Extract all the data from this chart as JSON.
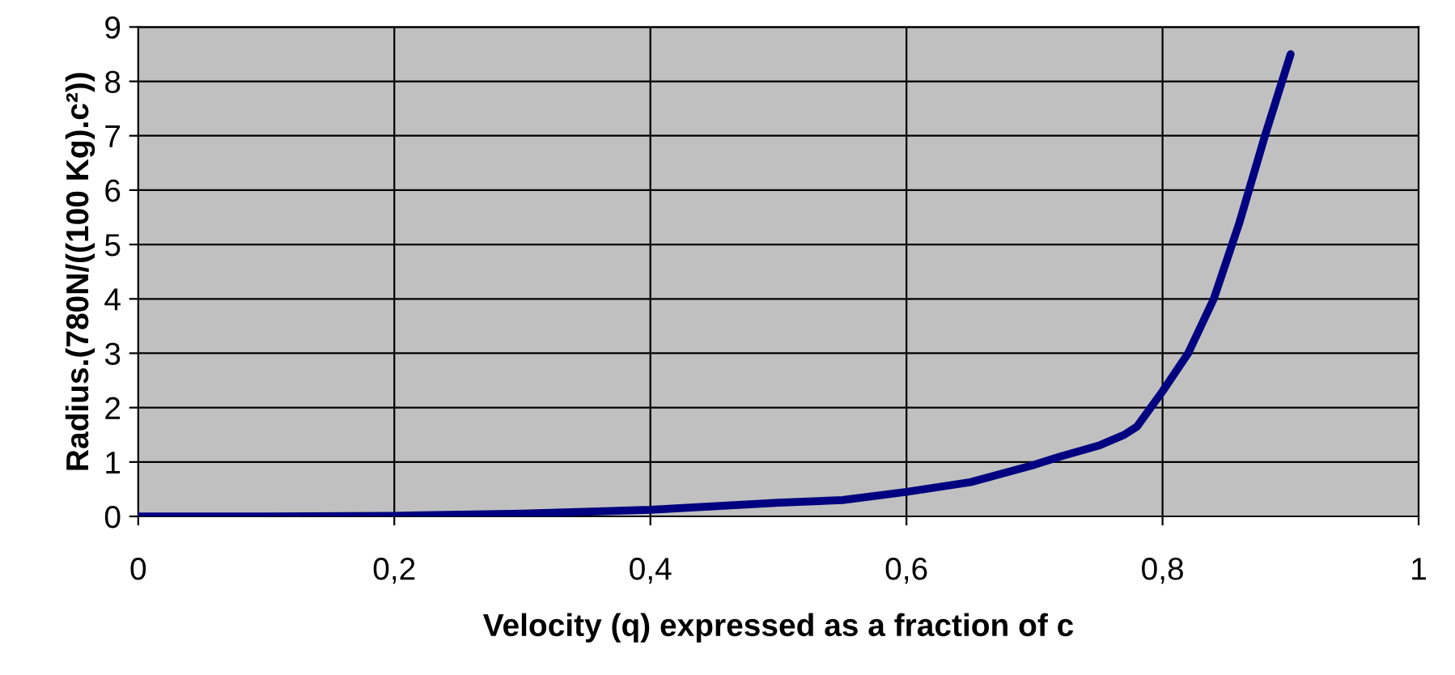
{
  "chart_data": {
    "type": "line",
    "xlabel": "Velocity (q) expressed as a fraction of c",
    "ylabel": "Radius.(780N/((100 Kg).c²))",
    "series": [
      {
        "color": "#000080",
        "x": [
          0,
          0.1,
          0.2,
          0.3,
          0.4,
          0.5,
          0.55,
          0.6,
          0.65,
          0.7,
          0.72,
          0.75,
          0.77,
          0.78,
          0.8,
          0.82,
          0.84,
          0.86,
          0.88,
          0.9
        ],
        "values": [
          0,
          0,
          0.01,
          0.05,
          0.12,
          0.25,
          0.3,
          0.45,
          0.63,
          0.95,
          1.1,
          1.3,
          1.5,
          1.65,
          2.3,
          3.0,
          4.0,
          5.4,
          7.0,
          8.5
        ]
      }
    ],
    "xlim": [
      0,
      1
    ],
    "ylim": [
      0,
      9
    ],
    "xticks": [
      0,
      {
        "value": 0.2,
        "label": "0,2"
      },
      {
        "value": 0.4,
        "label": "0,4"
      },
      {
        "value": 0.6,
        "label": "0,6"
      },
      {
        "value": 0.8,
        "label": "0,8"
      },
      1
    ],
    "yticks": [
      0,
      1,
      2,
      3,
      4,
      5,
      6,
      7,
      8,
      9
    ],
    "grid": true,
    "marker": "none",
    "line_style": "solid",
    "legend": false
  }
}
